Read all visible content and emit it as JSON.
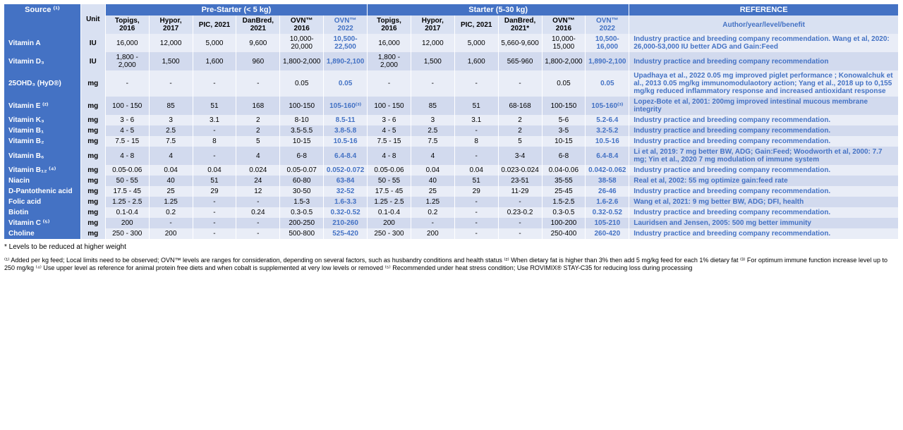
{
  "header": {
    "source": "Source ⁽¹⁾",
    "unit": "Unit",
    "group1": "Pre-Starter (< 5 kg)",
    "group2": "Starter (5-30 kg)",
    "ref": "REFERENCE",
    "sub_ref": "Author/year/level/benefit",
    "cols": [
      "Topigs, 2016",
      "Hypor, 2017",
      "PIC, 2021",
      "DanBred, 2021",
      "OVN™ 2016",
      "OVN™ 2022",
      "Topigs, 2016",
      "Hypor, 2017",
      "PIC, 2021",
      "DanBred, 2021*",
      "OVN™ 2016",
      "OVN™ 2022"
    ]
  },
  "rows": [
    {
      "label": "Vitamin A",
      "unit": "IU",
      "v": [
        "16,000",
        "12,000",
        "5,000",
        "9,600",
        "10,000-20,000",
        "10,500-22,500",
        "16,000",
        "12,000",
        "5,000",
        "5,660-9,600",
        "10,000-15,000",
        "10,500-16,000"
      ],
      "ref": "Industry practice and breeding company recommendation. Wang et al, 2020: 26,000-53,000 IU better ADG and Gain:Feed",
      "refblue": true
    },
    {
      "label": "Vitamin D₃",
      "unit": "IU",
      "v": [
        "1,800 - 2,000",
        "1,500",
        "1,600",
        "960",
        "1,800-2,000",
        "1,890-2,100",
        "1,800 - 2,000",
        "1,500",
        "1,600",
        "565-960",
        "1,800-2,000",
        "1,890-2,100"
      ],
      "ref": "Industry practice and breeding company recommendation",
      "refblue": true
    },
    {
      "label": "25OHD₃ (HyD®)",
      "unit": "mg",
      "v": [
        "-",
        "-",
        "-",
        "-",
        "0.05",
        "0.05",
        "-",
        "-",
        "-",
        "-",
        "0.05",
        "0.05"
      ],
      "ref": "Upadhaya et al., 2022 0.05 mg improved piglet performance ; Konowalchuk et al., 2013 0.05 mg/kg immunomodulaotory action; Yang et al., 2018 up to 0,155 mg/kg reduced inflammatory response and increased antioxidant response",
      "refblue": true
    },
    {
      "label": "Vitamin E ⁽²⁾",
      "unit": "mg",
      "v": [
        "100 - 150",
        "85",
        "51",
        "168",
        "100-150",
        "105-160⁽³⁾",
        "100 - 150",
        "85",
        "51",
        "68-168",
        "100-150",
        "105-160⁽³⁾"
      ],
      "ref": "Lopez-Bote et al, 2001: 200mg improved intestinal mucous membrane integrity",
      "refblue": true
    },
    {
      "label": "Vitamin K₃",
      "unit": "mg",
      "v": [
        "3 - 6",
        "3",
        "3.1",
        "2",
        "8-10",
        "8.5-11",
        "3 - 6",
        "3",
        "3.1",
        "2",
        "5-6",
        "5.2-6.4"
      ],
      "ref": "Industry practice and breeding company recommendation.",
      "refblue": true
    },
    {
      "label": "Vitamin B₁",
      "unit": "mg",
      "v": [
        "4 - 5",
        "2.5",
        "-",
        "2",
        "3.5-5.5",
        "3.8-5.8",
        "4 - 5",
        "2.5",
        "-",
        "2",
        "3-5",
        "3.2-5.2"
      ],
      "ref": "Industry practice and breeding company recommendation.",
      "refblue": true
    },
    {
      "label": "Vitamin B₂",
      "unit": "mg",
      "v": [
        "7.5 - 15",
        "7.5",
        "8",
        "5",
        "10-15",
        "10.5-16",
        "7.5 - 15",
        "7.5",
        "8",
        "5",
        "10-15",
        "10.5-16"
      ],
      "ref": "Industry practice and breeding company recommendation.",
      "refblue": true
    },
    {
      "label": "Vitamin B₆",
      "unit": "mg",
      "v": [
        "4 - 8",
        "4",
        "-",
        "4",
        "6-8",
        "6.4-8.4",
        "4 - 8",
        "4",
        "-",
        "3-4",
        "6-8",
        "6.4-8.4"
      ],
      "ref": "Li et al, 2019: 7 mg better BW, ADG; Gain:Feed; Woodworth et al, 2000: 7.7 mg; Yin et al., 2020 7 mg modulation of immune system",
      "refblue": true
    },
    {
      "label": "Vitamin B₁₂ ⁽⁴⁾",
      "unit": "mg",
      "v": [
        "0.05-0.06",
        "0.04",
        "0.04",
        "0.024",
        "0.05-0.07",
        "0.052-0.072",
        "0.05-0.06",
        "0.04",
        "0.04",
        "0.023-0.024",
        "0.04-0.06",
        "0.042-0.062"
      ],
      "ref": "Industry practice and breeding company recommendation.",
      "refblue": true
    },
    {
      "label": "Niacin",
      "unit": "mg",
      "v": [
        "50 - 55",
        "40",
        "51",
        "24",
        "60-80",
        "63-84",
        "50 - 55",
        "40",
        "51",
        "23-51",
        "35-55",
        "38-58"
      ],
      "ref": "Real et al, 2002: 55 mg optimize gain:feed rate",
      "refblue": true
    },
    {
      "label": "D-Pantothenic acid",
      "unit": "mg",
      "v": [
        "17.5 - 45",
        "25",
        "29",
        "12",
        "30-50",
        "32-52",
        "17.5 - 45",
        "25",
        "29",
        "11-29",
        "25-45",
        "26-46"
      ],
      "ref": "Industry practice and breeding company recommendation.",
      "refblue": true
    },
    {
      "label": "Folic acid",
      "unit": "mg",
      "v": [
        "1.25 - 2.5",
        "1.25",
        "-",
        "-",
        "1.5-3",
        "1.6-3.3",
        "1.25 - 2.5",
        "1.25",
        "-",
        "-",
        "1.5-2.5",
        "1.6-2.6"
      ],
      "ref": "Wang et al, 2021: 9 mg better BW, ADG; DFI, health",
      "refblue": true
    },
    {
      "label": "Biotin",
      "unit": "mg",
      "v": [
        "0.1-0.4",
        "0.2",
        "-",
        "0.24",
        "0.3-0.5",
        "0.32-0.52",
        "0.1-0.4",
        "0.2",
        "-",
        "0.23-0.2",
        "0.3-0.5",
        "0.32-0.52"
      ],
      "ref": "Industry practice and breeding company recommendation.",
      "refblue": true
    },
    {
      "label": "Vitamin C ⁽⁵⁾",
      "unit": "mg",
      "v": [
        "200",
        "-",
        "-",
        "-",
        "200-250",
        "210-260",
        "200",
        "-",
        "-",
        "-",
        "100-200",
        "105-210"
      ],
      "ref": "Lauridsen and Jensen, 2005: 500 mg better immunity",
      "refblue": true
    },
    {
      "label": "Choline",
      "unit": "mg",
      "v": [
        "250 - 300",
        "200",
        "-",
        "-",
        "500-800",
        "525-420",
        "250 - 300",
        "200",
        "-",
        "-",
        "250-400",
        "260-420"
      ],
      "ref": "Industry practice and breeding company recommendation.",
      "refblue": true
    }
  ],
  "foot1": "* Levels to be reduced at higher weight",
  "foot2": "⁽¹⁾ Added per kg feed; Local limits need to be observed; OVN™ levels are ranges for consideration, depending on several factors, such as husbandry conditions and health status ⁽²⁾ When dietary fat is higher than 3% then add 5 mg/kg feed for each 1% dietary fat ⁽³⁾ For optimum immune function increase level up to 250 mg/kg ⁽⁴⁾ Use upper level as reference for animal protein free diets and when cobalt is supplemented at very low levels or removed ⁽⁵⁾ Recommended under heat stress condition; Use ROVIMIX® STAY-C35 for reducing loss during processing",
  "widths": {
    "label": 105,
    "unit": 34,
    "data": 60,
    "ref": 370
  }
}
